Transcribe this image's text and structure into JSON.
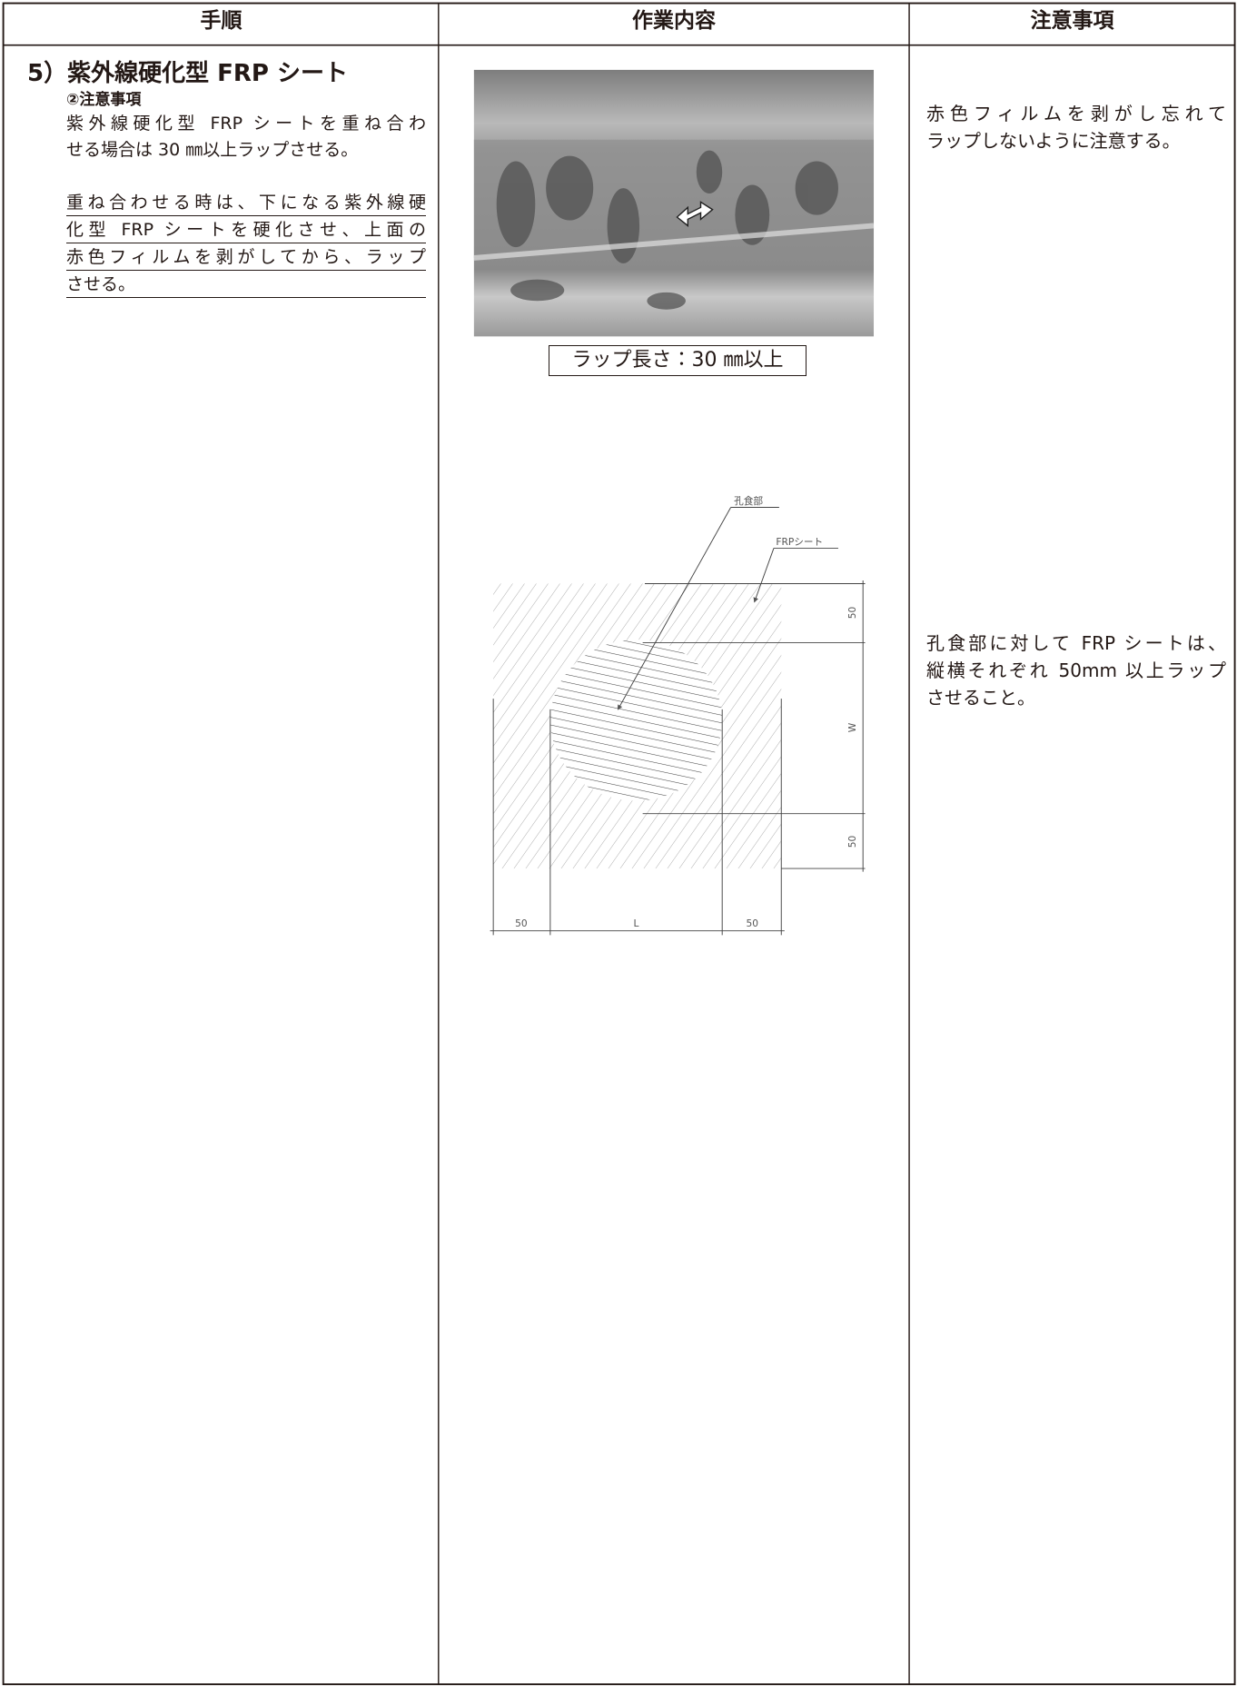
{
  "table": {
    "headers": [
      "手順",
      "作業内容",
      "注意事項"
    ],
    "step": {
      "title": "5）紫外線硬化型 FRP シート",
      "subtitle": "②注意事項",
      "text_lines": [
        "紫外線硬化型 FRP シートを重ね合わ",
        "せる場合は 30 ㎜以上ラップさせる。"
      ],
      "underlined_lines": [
        "重ね合わせる時は、下になる紫外線硬",
        "化型 FRP シートを硬化させ、上面の",
        "赤色フィルムを剥がしてから、ラップ",
        "させる。"
      ]
    },
    "work": {
      "photo_caption": "ラップ長さ：30 ㎜以上",
      "diagram": {
        "pit_label": "孔食部",
        "sheet_label": "FRPシート",
        "right_top": "50",
        "right_mid": "W",
        "right_bottom": "50",
        "bottom_left": "50",
        "bottom_mid": "L",
        "bottom_right": "50"
      }
    },
    "notes": [
      [
        "赤色フィルムを剥がし忘れて",
        "ラップしないように注意する。"
      ],
      [
        "孔食部に対して FRP シートは、",
        "縦横それぞれ 50mm 以上ラップ",
        "させること。"
      ]
    ]
  }
}
